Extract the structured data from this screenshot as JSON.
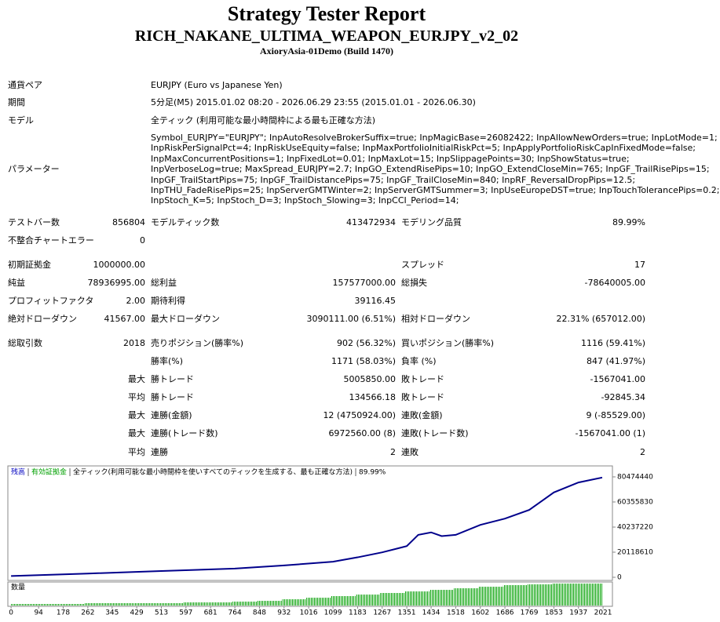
{
  "header": {
    "title": "Strategy Tester Report",
    "expert": "RICH_NAKANE_ULTIMA_WEAPON_EURJPY_v2_02",
    "server": "AxioryAsia-01Demo (Build 1470)"
  },
  "settings": [
    {
      "label": "通貨ペア",
      "value": "EURJPY (Euro vs Japanese Yen)"
    },
    {
      "label": "期間",
      "value": "5分足(M5) 2015.01.02 08:20 - 2026.06.29 23:55 (2015.01.01 - 2026.06.30)"
    },
    {
      "label": "モデル",
      "value": "全ティック (利用可能な最小時間枠による最も正確な方法)"
    }
  ],
  "parameters": {
    "label": "パラメーター",
    "lines": [
      "Symbol_EURJPY=\"EURJPY\"; InpAutoResolveBrokerSuffix=true; InpMagicBase=26082422; InpAllowNewOrders=true; InpLotMode=1;",
      "InpRiskPerSignalPct=4; InpRiskUseEquity=false; InpMaxPortfolioInitialRiskPct=5; InpApplyPortfolioRiskCapInFixedMode=false;",
      "InpMaxConcurrentPositions=1; InpFixedLot=0.01; InpMaxLot=15; InpSlippagePoints=30; InpShowStatus=true;",
      "InpVerboseLog=true; MaxSpread_EURJPY=2.7; InpGO_ExtendRisePips=10; InpGO_ExtendCloseMin=765; InpGF_TrailRisePips=15;",
      "InpGF_TrailStartPips=75; InpGF_TrailDistancePips=75; InpGF_TrailCloseMin=840; InpRF_ReversalDropPips=12.5;",
      "InpTHU_FadeRisePips=25; InpServerGMTWinter=2; InpServerGMTSummer=3; InpUseEuropeDST=true; InpTouchTolerancePips=0.2;",
      "InpStoch_K=5; InpStoch_D=3; InpStoch_Slowing=3; InpCCI_Period=14;"
    ]
  },
  "stats": [
    [
      "テストバー数",
      "856804",
      "モデルティック数",
      "413472934",
      "モデリング品質",
      "89.99%"
    ],
    [
      "不整合チャートエラー",
      "0",
      null,
      null,
      null,
      null
    ],
    [
      "初期証拠金",
      "1000000.00",
      null,
      null,
      "スプレッド",
      "17"
    ],
    [
      "純益",
      "78936995.00",
      "総利益",
      "157577000.00",
      "総損失",
      "-78640005.00"
    ],
    [
      "プロフィットファクタ",
      "2.00",
      "期待利得",
      "39116.45",
      null,
      null
    ],
    [
      "絶対ドローダウン",
      "41567.00",
      "最大ドローダウン",
      "3090111.00 (6.51%)",
      "相対ドローダウン",
      "22.31% (657012.00)"
    ],
    [
      "総取引数",
      "2018",
      "売りポジション(勝率%)",
      "902 (56.32%)",
      "買いポジション(勝率%)",
      "1116 (59.41%)"
    ],
    [
      null,
      null,
      "勝率(%)",
      "1171 (58.03%)",
      "負率 (%)",
      "847 (41.97%)"
    ],
    [
      null,
      "最大",
      "勝トレード",
      "5005850.00",
      "敗トレード",
      "-1567041.00"
    ],
    [
      null,
      "平均",
      "勝トレード",
      "134566.18",
      "敗トレード",
      "-92845.34"
    ],
    [
      null,
      "最大",
      "連勝(金額)",
      "12 (4750924.00)",
      "連敗(金額)",
      "9 (-85529.00)"
    ],
    [
      null,
      "最大",
      "連勝(トレード数)",
      "6972560.00 (8)",
      "連敗(トレード数)",
      "-1567041.00 (1)"
    ],
    [
      null,
      "平均",
      "連勝",
      "2",
      "連敗",
      "2"
    ]
  ],
  "chart_data": {
    "type": "line",
    "legend": [
      {
        "text": "残高",
        "color": "#0000c0"
      },
      {
        "text": "有効証拠金",
        "color": "#00a000"
      },
      {
        "text": "全ティック(利用可能な最小時間枠を使いすべてのティックを生成する、最も正確な方法)",
        "color": "#000000"
      },
      {
        "text": "89.99%",
        "color": "#000000"
      }
    ],
    "x": [
      0,
      262,
      513,
      764,
      932,
      1099,
      1183,
      1267,
      1351,
      1390,
      1434,
      1470,
      1518,
      1602,
      1686,
      1769,
      1853,
      1937,
      2018
    ],
    "series": [
      {
        "name": "残高",
        "color": "#00008b",
        "values": [
          1000000,
          3000000,
          5000000,
          7000000,
          9500000,
          12500000,
          16000000,
          20000000,
          25000000,
          34000000,
          36000000,
          33000000,
          34000000,
          42000000,
          47000000,
          54000000,
          68000000,
          76000000,
          79936995
        ]
      }
    ],
    "xlim": [
      -11,
      2053
    ],
    "ylim": [
      0,
      88000000
    ],
    "xticks": [
      0,
      94,
      178,
      262,
      345,
      429,
      513,
      597,
      681,
      764,
      848,
      932,
      1016,
      1099,
      1183,
      1267,
      1351,
      1434,
      1518,
      1602,
      1686,
      1769,
      1853,
      1937,
      2021
    ],
    "yticks": [
      0,
      20118610,
      40237220,
      60355830,
      80474440
    ],
    "volume": {
      "name": "数量",
      "color": "#00a000",
      "bins": [
        0,
        84,
        168,
        252,
        336,
        420,
        504,
        588,
        672,
        756,
        840,
        924,
        1008,
        1092,
        1176,
        1260,
        1344,
        1428,
        1512,
        1596,
        1680,
        1764,
        1848,
        1932,
        2018
      ],
      "values": [
        2,
        2,
        2,
        3,
        3,
        3,
        3,
        4,
        4,
        5,
        6,
        8,
        10,
        12,
        14,
        16,
        18,
        20,
        22,
        24,
        26,
        27,
        28,
        28
      ]
    }
  }
}
